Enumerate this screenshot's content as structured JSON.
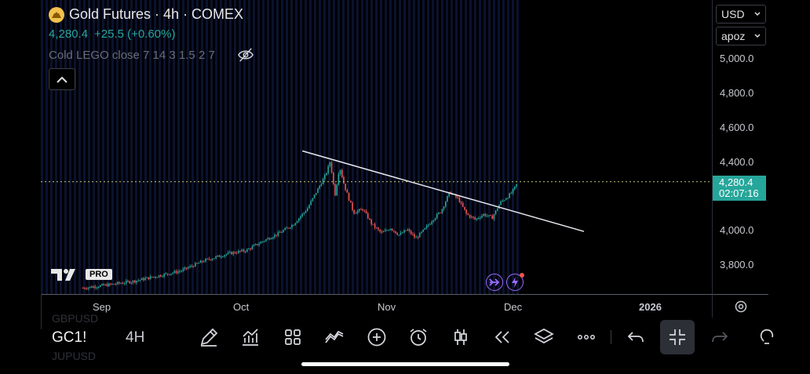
{
  "header": {
    "title": "Gold Futures · 4h · COMEX",
    "price": "4,280.4",
    "change": "+25.5 (+0.60%)",
    "indicator": "Cold LEGO close 7 14 3 1.5 2 7"
  },
  "price_axis": {
    "currency": "USD",
    "scale_mode": "apoz",
    "ticks": [
      "5,000.0",
      "4,800.0",
      "4,600.0",
      "4,400.0",
      "4,000.0",
      "3,800.0"
    ],
    "current_price": "4,280.4",
    "countdown": "02:07:16"
  },
  "time_axis": {
    "labels": [
      "Sep",
      "Oct",
      "Nov",
      "Dec",
      "2026"
    ]
  },
  "toolbar": {
    "symbol": "GC1!",
    "timeframe": "4H",
    "ghost_above": "GBPUSD",
    "ghost_below": "JUPUSD"
  },
  "watermark": {
    "badge": "PRO"
  },
  "colors": {
    "up": "#26a69a",
    "down": "#ef5350",
    "trendline": "#e8e8f0",
    "session_band": "#0b1230",
    "price_line": "#c8c878"
  },
  "chart_data": {
    "type": "candlestick",
    "symbol": "GC1!",
    "interval": "4h",
    "y_range": [
      3650,
      5100
    ],
    "last_close": 4280.4,
    "trendline": {
      "start": [
        "Oct 14",
        4460
      ],
      "end": [
        "Dec 16",
        3990
      ]
    },
    "close_path": [
      [
        "Aug 28",
        3660
      ],
      [
        "Sep 3",
        3680
      ],
      [
        "Sep 8",
        3700
      ],
      [
        "Sep 13",
        3730
      ],
      [
        "Sep 18",
        3760
      ],
      [
        "Sep 23",
        3820
      ],
      [
        "Sep 28",
        3860
      ],
      [
        "Oct 2",
        3880
      ],
      [
        "Oct 6",
        3940
      ],
      [
        "Oct 9",
        3980
      ],
      [
        "Oct 12",
        4030
      ],
      [
        "Oct 15",
        4120
      ],
      [
        "Oct 17",
        4220
      ],
      [
        "Oct 19",
        4320
      ],
      [
        "Oct 20",
        4400
      ],
      [
        "Oct 21",
        4200
      ],
      [
        "Oct 22",
        4370
      ],
      [
        "Oct 23",
        4260
      ],
      [
        "Oct 25",
        4100
      ],
      [
        "Oct 27",
        4120
      ],
      [
        "Oct 29",
        4030
      ],
      [
        "Oct 31",
        3980
      ],
      [
        "Nov 2",
        4010
      ],
      [
        "Nov 4",
        3970
      ],
      [
        "Nov 6",
        4000
      ],
      [
        "Nov 8",
        3950
      ],
      [
        "Nov 10",
        4000
      ],
      [
        "Nov 12",
        4060
      ],
      [
        "Nov 14",
        4110
      ],
      [
        "Nov 16",
        4220
      ],
      [
        "Nov 18",
        4180
      ],
      [
        "Nov 20",
        4090
      ],
      [
        "Nov 22",
        4060
      ],
      [
        "Nov 24",
        4090
      ],
      [
        "Nov 26",
        4070
      ],
      [
        "Nov 28",
        4160
      ],
      [
        "Nov 30",
        4200
      ],
      [
        "Dec 1",
        4230
      ],
      [
        "Dec 2",
        4280
      ]
    ]
  }
}
